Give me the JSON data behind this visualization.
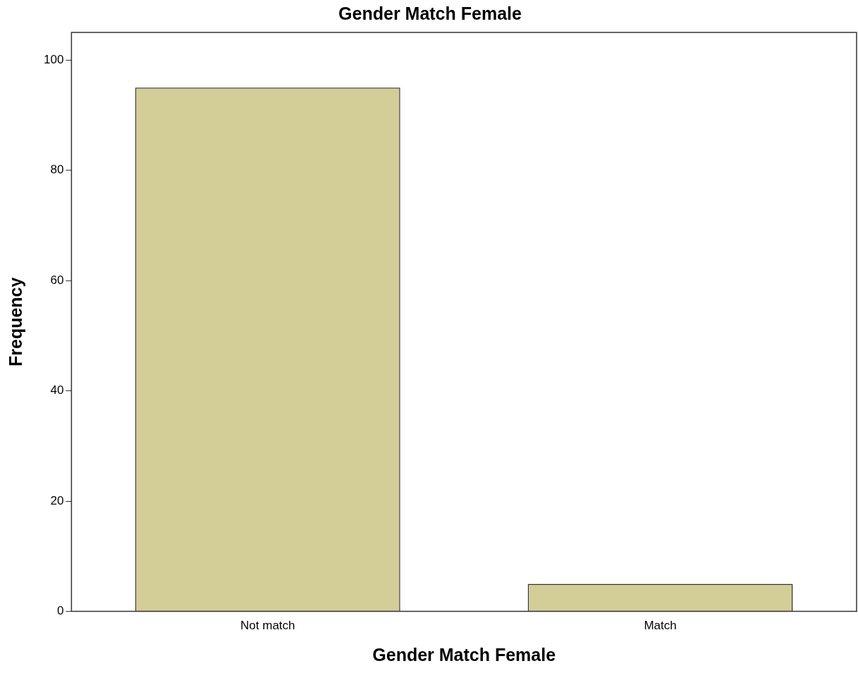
{
  "chart_data": {
    "type": "bar",
    "title": "Gender Match Female",
    "xlabel": "Gender Match Female",
    "ylabel": "Frequency",
    "categories": [
      "Not match",
      "Match"
    ],
    "values": [
      95,
      5
    ],
    "color": "#d3cd98",
    "ylim": [
      0,
      105
    ],
    "yticks": [
      0,
      20,
      40,
      60,
      80,
      100
    ],
    "grid": false,
    "legend": false
  }
}
